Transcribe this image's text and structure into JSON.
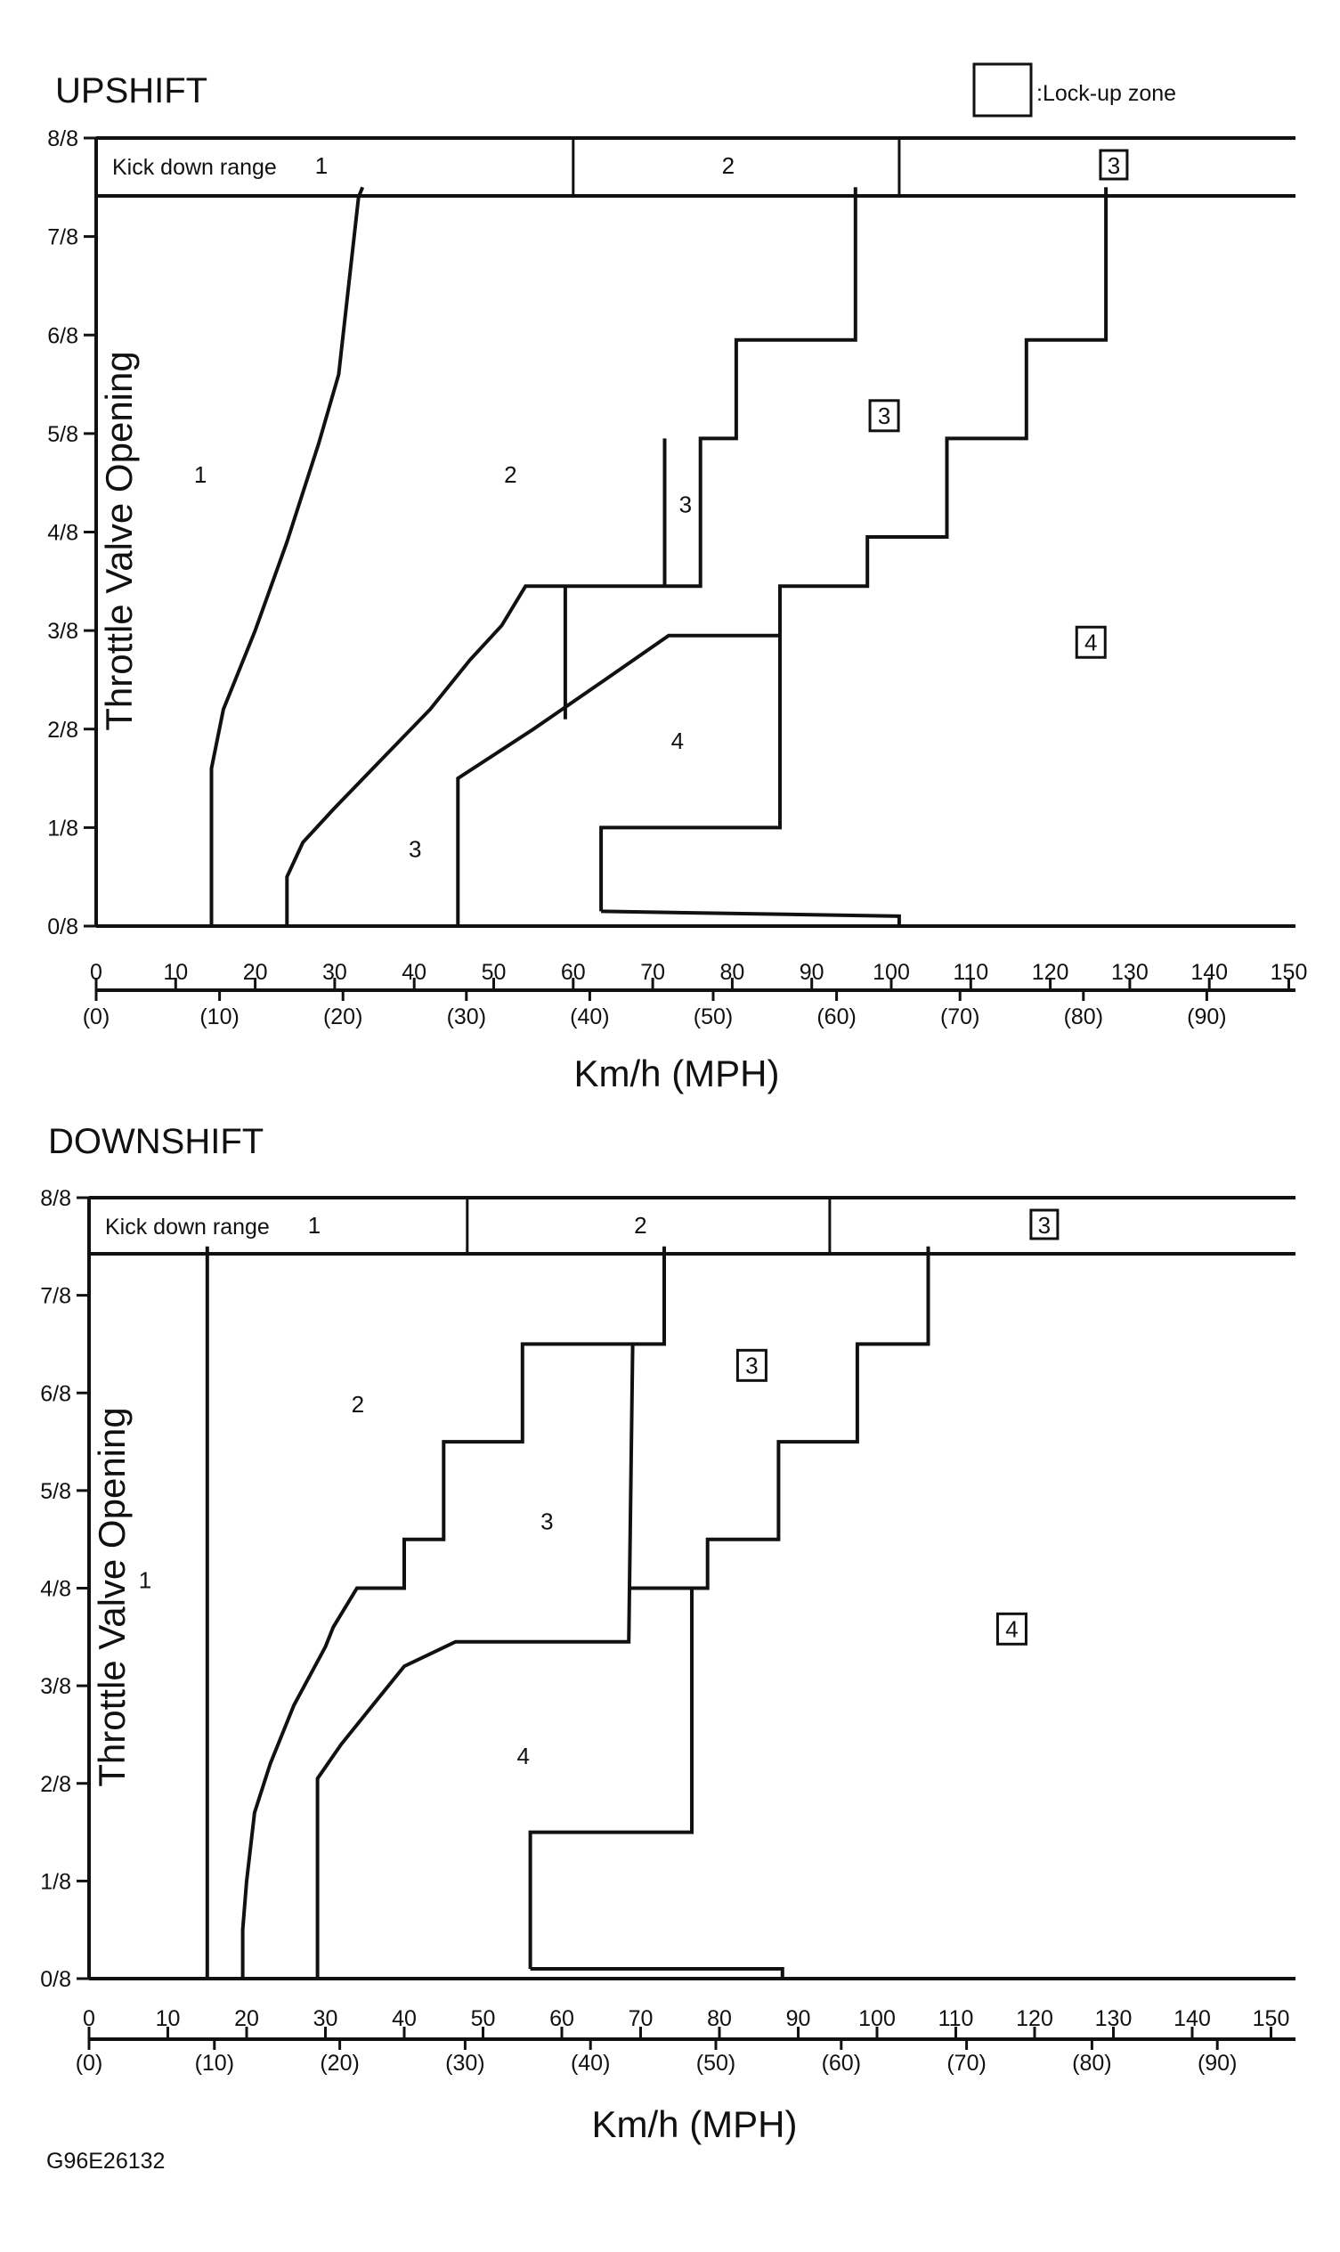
{
  "legend": {
    "label": ":Lock-up zone"
  },
  "footer_code": "G96E26132",
  "y_ticks": [
    "0/8",
    "1/8",
    "2/8",
    "3/8",
    "4/8",
    "5/8",
    "6/8",
    "7/8",
    "8/8"
  ],
  "kmh_ticks": [
    "0",
    "10",
    "20",
    "30",
    "40",
    "50",
    "60",
    "70",
    "80",
    "90",
    "100",
    "110",
    "120",
    "130",
    "140",
    "150"
  ],
  "mph_ticks": [
    "(0)",
    "(10)",
    "(20)",
    "(30)",
    "(40)",
    "(50)",
    "(60)",
    "(70)",
    "(80)",
    "(90)"
  ],
  "chart_data": [
    {
      "type": "line",
      "title": "UPSHIFT",
      "xlabel": "Km/h (MPH)",
      "ylabel": "Throttle Valve Opening",
      "xlim": [
        0,
        150
      ],
      "ylim": [
        0,
        8
      ],
      "kickdown": {
        "label": "Kick down range",
        "segments": [
          {
            "gear": "1",
            "from": 0,
            "to": 60,
            "lockup": false
          },
          {
            "gear": "2",
            "from": 60,
            "to": 101,
            "lockup": false
          },
          {
            "gear": "3",
            "from": 101,
            "to": 150,
            "lockup": true
          }
        ]
      },
      "series": [
        {
          "points": [
            [
              14.5,
              0
            ],
            [
              14.5,
              1.6
            ],
            [
              16,
              2.2
            ],
            [
              20,
              3.0
            ],
            [
              24,
              3.9
            ],
            [
              28,
              4.9
            ],
            [
              30.5,
              5.6
            ],
            [
              33,
              7.4
            ],
            [
              33.5,
              7.5
            ]
          ]
        },
        {
          "points": [
            [
              24,
              0
            ],
            [
              24,
              0.5
            ],
            [
              26,
              0.85
            ],
            [
              30,
              1.2
            ],
            [
              36,
              1.7
            ],
            [
              42,
              2.2
            ],
            [
              47,
              2.7
            ],
            [
              51,
              3.05
            ],
            [
              54,
              3.45
            ],
            [
              54,
              3.45
            ],
            [
              76,
              3.45
            ],
            [
              76,
              4.95
            ],
            [
              80.5,
              4.95
            ],
            [
              80.5,
              5.95
            ],
            [
              95.5,
              5.95
            ],
            [
              95.5,
              7.5
            ]
          ]
        },
        {
          "points": [
            [
              59,
              2.1
            ],
            [
              59,
              3.45
            ]
          ]
        },
        {
          "points": [
            [
              71.5,
              3.45
            ],
            [
              71.5,
              4.95
            ]
          ]
        },
        {
          "points": [
            [
              45.5,
              0
            ],
            [
              45.5,
              1.5
            ],
            [
              55,
              2.0
            ],
            [
              64,
              2.5
            ],
            [
              72,
              2.95
            ],
            [
              72,
              2.95
            ],
            [
              86,
              2.95
            ],
            [
              86,
              3.45
            ],
            [
              97,
              3.45
            ],
            [
              97,
              3.95
            ],
            [
              107,
              3.95
            ],
            [
              107,
              4.95
            ],
            [
              117,
              4.95
            ],
            [
              117,
              5.95
            ],
            [
              127,
              5.95
            ],
            [
              127,
              7.5
            ]
          ]
        },
        {
          "points": [
            [
              63.5,
              0.15
            ],
            [
              63.5,
              1.0
            ],
            [
              86,
              1.0
            ],
            [
              86,
              2.95
            ]
          ]
        },
        {
          "points": [
            [
              63.5,
              0.15
            ],
            [
              101,
              0.1
            ],
            [
              101,
              0
            ]
          ]
        }
      ],
      "zones": [
        {
          "label": "1",
          "x": 13,
          "y": 4.5,
          "lockup": false
        },
        {
          "label": "2",
          "x": 52,
          "y": 4.5,
          "lockup": false
        },
        {
          "label": "3",
          "x": 74,
          "y": 4.2,
          "lockup": false
        },
        {
          "label": "3",
          "x": 99,
          "y": 5.1,
          "lockup": true
        },
        {
          "label": "3",
          "x": 40,
          "y": 0.7,
          "lockup": false
        },
        {
          "label": "4",
          "x": 73,
          "y": 1.8,
          "lockup": false
        },
        {
          "label": "4",
          "x": 125,
          "y": 2.8,
          "lockup": true
        }
      ]
    },
    {
      "type": "line",
      "title": "DOWNSHIFT",
      "xlabel": "Km/h (MPH)",
      "ylabel": "Throttle Valve Opening",
      "xlim": [
        0,
        150
      ],
      "ylim": [
        0,
        8
      ],
      "kickdown": {
        "label": "Kick down range",
        "segments": [
          {
            "gear": "1",
            "from": 0,
            "to": 48,
            "lockup": false
          },
          {
            "gear": "2",
            "from": 48,
            "to": 94,
            "lockup": false
          },
          {
            "gear": "3",
            "from": 94,
            "to": 150,
            "lockup": true
          }
        ]
      },
      "series": [
        {
          "points": [
            [
              15,
              0
            ],
            [
              15,
              7.5
            ]
          ]
        },
        {
          "points": [
            [
              19.5,
              0
            ],
            [
              19.5,
              0.5
            ],
            [
              20,
              1.0
            ],
            [
              21,
              1.7
            ],
            [
              23,
              2.2
            ],
            [
              26,
              2.8
            ],
            [
              30,
              3.4
            ],
            [
              31,
              3.6
            ],
            [
              34,
              4.0
            ],
            [
              40,
              4.0
            ],
            [
              40,
              4.5
            ],
            [
              45,
              4.5
            ],
            [
              45,
              5.5
            ],
            [
              55,
              5.5
            ],
            [
              55,
              6.5
            ],
            [
              73,
              6.5
            ],
            [
              73,
              7.5
            ]
          ]
        },
        {
          "points": [
            [
              29,
              0
            ],
            [
              29,
              2.05
            ],
            [
              32,
              2.4
            ],
            [
              36,
              2.8
            ],
            [
              40,
              3.2
            ],
            [
              46.5,
              3.45
            ],
            [
              68.5,
              3.45
            ],
            [
              69,
              6.5
            ]
          ]
        },
        {
          "points": [
            [
              68.5,
              4.0
            ],
            [
              78.5,
              4.0
            ],
            [
              78.5,
              4.5
            ],
            [
              87.5,
              4.5
            ],
            [
              87.5,
              5.5
            ],
            [
              97.5,
              5.5
            ],
            [
              97.5,
              6.5
            ],
            [
              106.5,
              6.5
            ],
            [
              106.5,
              7.5
            ]
          ]
        },
        {
          "points": [
            [
              56,
              0.1
            ],
            [
              56,
              1.5
            ],
            [
              76.5,
              1.5
            ],
            [
              76.5,
              4.0
            ]
          ]
        },
        {
          "points": [
            [
              56,
              0.1
            ],
            [
              88,
              0.1
            ],
            [
              88,
              0
            ]
          ]
        }
      ],
      "zones": [
        {
          "label": "1",
          "x": 7,
          "y": 4.0,
          "lockup": false
        },
        {
          "label": "2",
          "x": 34,
          "y": 5.8,
          "lockup": false
        },
        {
          "label": "3",
          "x": 58,
          "y": 4.6,
          "lockup": false
        },
        {
          "label": "3",
          "x": 84,
          "y": 6.2,
          "lockup": true
        },
        {
          "label": "4",
          "x": 55,
          "y": 2.2,
          "lockup": false
        },
        {
          "label": "4",
          "x": 117,
          "y": 3.5,
          "lockup": true
        }
      ]
    }
  ]
}
